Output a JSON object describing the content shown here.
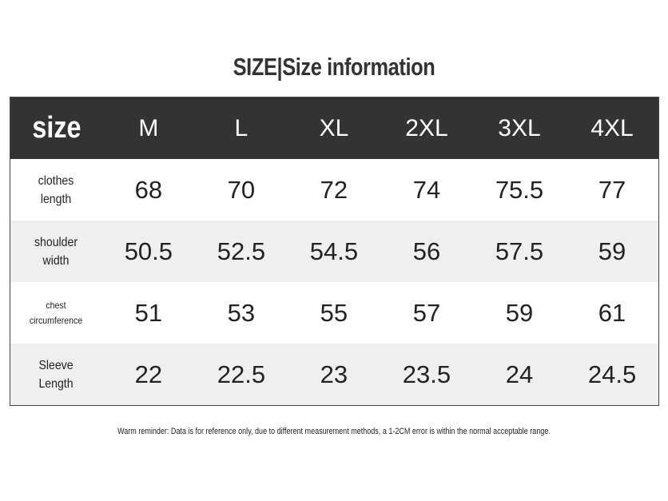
{
  "title": "SIZE|Size information",
  "table": {
    "corner": "size",
    "columns": [
      "M",
      "L",
      "XL",
      "2XL",
      "3XL",
      "4XL"
    ],
    "rows": [
      {
        "label": "clothes length",
        "values": [
          "68",
          "70",
          "72",
          "74",
          "75.5",
          "77"
        ]
      },
      {
        "label": "shoulder width",
        "values": [
          "50.5",
          "52.5",
          "54.5",
          "56",
          "57.5",
          "59"
        ]
      },
      {
        "label": "chest circumference",
        "values": [
          "51",
          "53",
          "55",
          "57",
          "59",
          "61"
        ]
      },
      {
        "label": "Sleeve Length",
        "values": [
          "22",
          "22.5",
          "23",
          "23.5",
          "24",
          "24.5"
        ]
      }
    ]
  },
  "note": "Warm reminder: Data is for reference only, due to different measurement methods, a 1-2CM error is within the normal acceptable range."
}
